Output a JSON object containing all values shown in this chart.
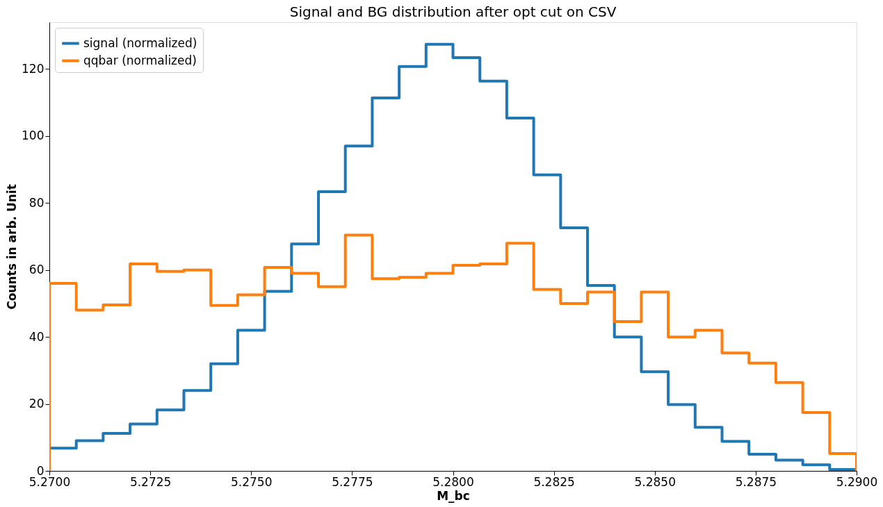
{
  "chart_data": {
    "type": "histogram",
    "title": "Signal and BG distribution after opt cut on CSV",
    "xlabel": "M_bc",
    "ylabel": "Counts in arb. Unit",
    "bins": [
      5.27,
      5.270667,
      5.271333,
      5.272,
      5.272667,
      5.273333,
      5.274,
      5.274667,
      5.275333,
      5.276,
      5.276667,
      5.277333,
      5.278,
      5.278667,
      5.279333,
      5.28,
      5.280667,
      5.281333,
      5.282,
      5.282667,
      5.283333,
      5.284,
      5.284667,
      5.285333,
      5.286,
      5.286667,
      5.287333,
      5.288,
      5.288667,
      5.289333,
      5.29
    ],
    "series": [
      {
        "name": "signal (normalized)",
        "color": "#1f77b4",
        "values": [
          6.8,
          9,
          11.2,
          14,
          18.2,
          24,
          32,
          42,
          53.6,
          67.8,
          83.4,
          97,
          111.4,
          120.8,
          127.4,
          123.4,
          116.4,
          105.4,
          88.4,
          72.6,
          55.4,
          40,
          29.6,
          19.8,
          13,
          8.8,
          5,
          3.2,
          1.8,
          0.4
        ]
      },
      {
        "name": "qqbar (normalized)",
        "color": "#ff7f0e",
        "values": [
          56,
          48,
          49.6,
          61.8,
          59.6,
          60,
          49.4,
          52.6,
          60.8,
          59,
          55,
          70.4,
          57.4,
          57.8,
          59,
          61.4,
          61.8,
          68,
          54.2,
          50,
          53.4,
          44.6,
          53.4,
          40,
          42,
          35.2,
          32.2,
          26.4,
          17.4,
          5.2
        ]
      }
    ],
    "xlim": [
      5.27,
      5.29
    ],
    "xticks": [
      {
        "value": 5.27,
        "label": "5.2700"
      },
      {
        "value": 5.2725,
        "label": "5.2725"
      },
      {
        "value": 5.275,
        "label": "5.2750"
      },
      {
        "value": 5.2775,
        "label": "5.2775"
      },
      {
        "value": 5.28,
        "label": "5.2800"
      },
      {
        "value": 5.2825,
        "label": "5.2825"
      },
      {
        "value": 5.285,
        "label": "5.2850"
      },
      {
        "value": 5.2875,
        "label": "5.2875"
      },
      {
        "value": 5.29,
        "label": "5.2900"
      }
    ],
    "ylim": [
      0,
      134
    ],
    "yticks": [
      0,
      20,
      40,
      60,
      80,
      100,
      120
    ],
    "grid": false,
    "legend": "top left"
  }
}
